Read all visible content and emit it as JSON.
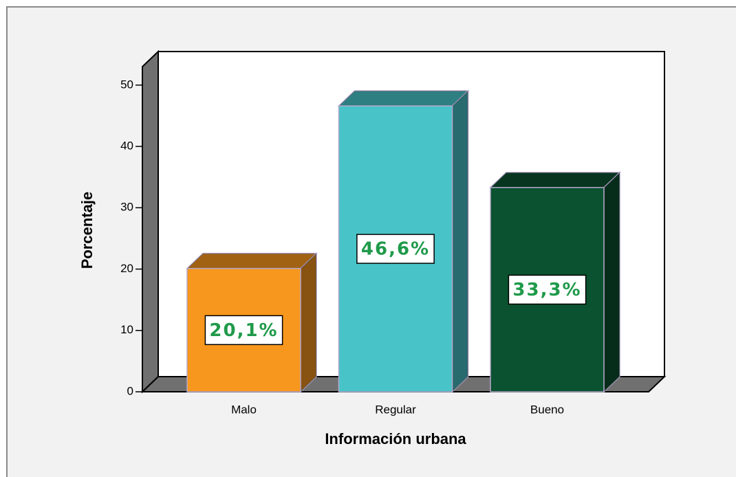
{
  "chart_data": {
    "type": "bar3d",
    "x_label": "Información urbana",
    "y_label": "Porcentaje",
    "categories": [
      "Malo",
      "Regular",
      "Bueno"
    ],
    "values": [
      20.1,
      46.6,
      33.3
    ],
    "value_labels": [
      "20,1%",
      "46,6%",
      "33,3%"
    ],
    "colors": [
      "#f7971e",
      "#48c3c8",
      "#0b5230"
    ],
    "ylim": [
      0,
      53
    ],
    "yticks": [
      0,
      10,
      20,
      30,
      40,
      50
    ]
  }
}
